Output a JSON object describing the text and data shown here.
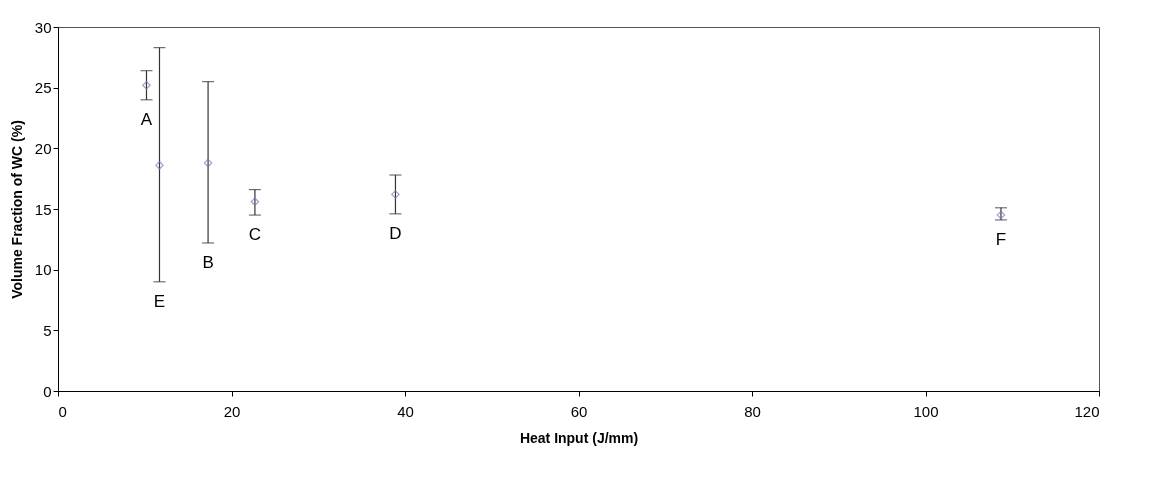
{
  "chart_data": {
    "type": "scatter",
    "xlabel": "Heat Input (J/mm)",
    "ylabel": "Volume Fraction of WC (%)",
    "x": [
      10.2,
      11.7,
      17.3,
      22.7,
      38.9,
      108.7
    ],
    "series": [
      {
        "color": "#7777bb",
        "values": [
          25.2,
          18.6,
          18.8,
          15.6,
          16.2,
          14.5
        ],
        "errors": [
          [
            24.0,
            26.4
          ],
          [
            9.0,
            28.3
          ],
          [
            12.2,
            25.5
          ],
          [
            14.5,
            16.6
          ],
          [
            14.6,
            17.8
          ],
          [
            14.1,
            15.1
          ]
        ]
      }
    ],
    "annotations": [
      "A",
      "E",
      "B",
      "C",
      "D",
      "F"
    ],
    "xlim": [
      0,
      120
    ],
    "xticks": [
      0,
      20,
      40,
      60,
      80,
      100,
      120
    ],
    "ylim": [
      0,
      30
    ],
    "yticks": [
      0,
      5,
      10,
      15,
      20,
      25,
      30
    ],
    "marker": "diamond",
    "grid": false
  }
}
